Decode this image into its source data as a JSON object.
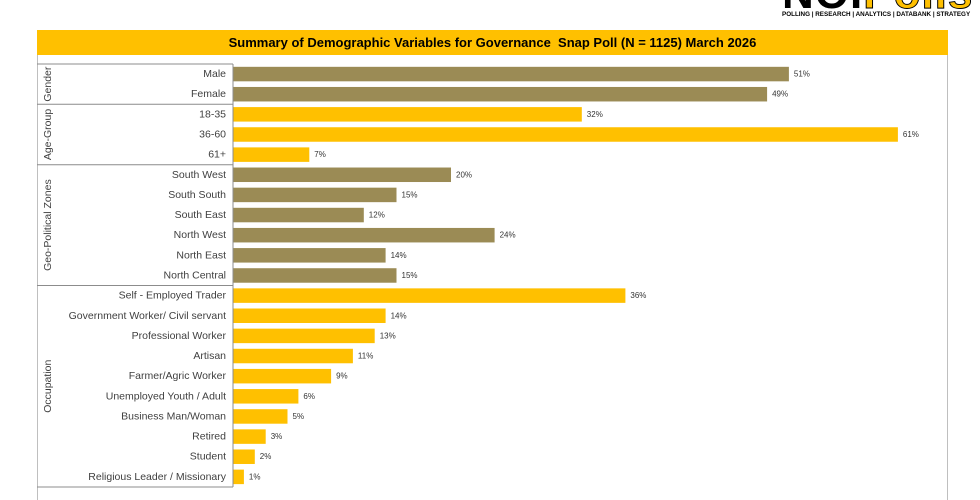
{
  "logo": {
    "word_black": "NOI",
    "word_gold": "Polls",
    "tagline": "POLLING | RESEARCH | ANALYTICS | DATABANK | STRATEGY"
  },
  "colors": {
    "title_bar": "#FFC000"
  },
  "chart_data": {
    "type": "bar",
    "orientation": "horizontal",
    "title": "Summary of Demographic Variables for Governance  Snap Poll (N = 1125) March 2026",
    "xlim": [
      0,
      65
    ],
    "grid": false,
    "groups": [
      {
        "name": "Gender",
        "color": "#9B8B55",
        "categories": [
          "Male",
          "Female"
        ],
        "values": [
          51,
          49
        ],
        "labels": [
          "51%",
          "49%"
        ]
      },
      {
        "name": "Age-Group",
        "color": "#FFC000",
        "categories": [
          "18-35",
          "36-60",
          "61+"
        ],
        "values": [
          32,
          61,
          7
        ],
        "labels": [
          "32%",
          "61%",
          "7%"
        ]
      },
      {
        "name": "Geo-Political Zones",
        "color": "#9B8B55",
        "categories": [
          "South West",
          "South South",
          "South East",
          "North West",
          "North East",
          "North Central"
        ],
        "values": [
          20,
          15,
          12,
          24,
          14,
          15
        ],
        "labels": [
          "20%",
          "15%",
          "12%",
          "24%",
          "14%",
          "15%"
        ]
      },
      {
        "name": "Occupation",
        "color": "#FFC000",
        "categories": [
          "Self - Employed Trader",
          "Government Worker/ Civil servant",
          "Professional Worker",
          "Artisan",
          "Farmer/Agric Worker",
          "Unemployed Youth / Adult",
          "Business Man/Woman",
          "Retired",
          "Student",
          "Religious Leader / Missionary"
        ],
        "values": [
          36,
          14,
          13,
          11,
          9,
          6,
          5,
          3,
          2,
          1
        ],
        "labels": [
          "36%",
          "14%",
          "13%",
          "11%",
          "9%",
          "6%",
          "5%",
          "3%",
          "2%",
          "1%"
        ]
      }
    ]
  }
}
